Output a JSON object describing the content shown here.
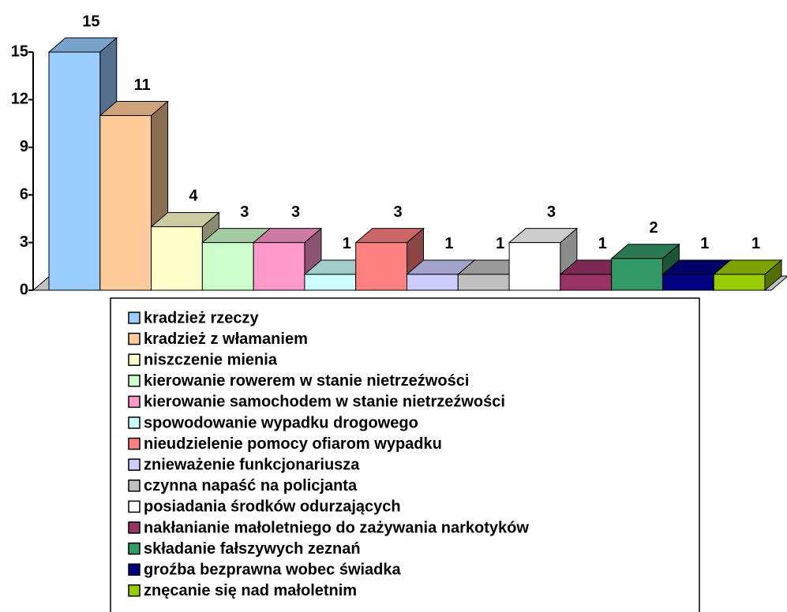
{
  "chart_data": {
    "type": "bar3d",
    "categories": [
      "kradzież rzeczy",
      "kradzież z włamaniem",
      "niszczenie mienia",
      "kierowanie rowerem w stanie nietrzeźwości",
      "kierowanie samochodem w stanie nietrzeźwości",
      "spowodowanie wypadku drogowego",
      "nieudzielenie pomocy ofiarom wypadku",
      "znieważenie funkcjonariusza",
      "czynna napaść na policjanta",
      "posiadania środków odurzających",
      "nakłanianie małoletniego do zażywania narkotyków",
      "składanie fałszywych zeznań",
      "groźba bezprawna wobec świadka",
      "znęcanie się nad małoletnim"
    ],
    "values": [
      15,
      11,
      4,
      3,
      3,
      1,
      3,
      1,
      1,
      3,
      1,
      2,
      1,
      1
    ],
    "colors": [
      "#99ccff",
      "#ffcc99",
      "#ffffcc",
      "#ccffcc",
      "#ff99cc",
      "#ccffff",
      "#ff8080",
      "#ccccff",
      "#c0c0c0",
      "#ffffff",
      "#993366",
      "#339966",
      "#000080",
      "#99cc00"
    ],
    "ylim": [
      0,
      15
    ],
    "yticks": [
      0,
      3,
      6,
      9,
      12,
      15
    ],
    "legend": "bottom"
  }
}
